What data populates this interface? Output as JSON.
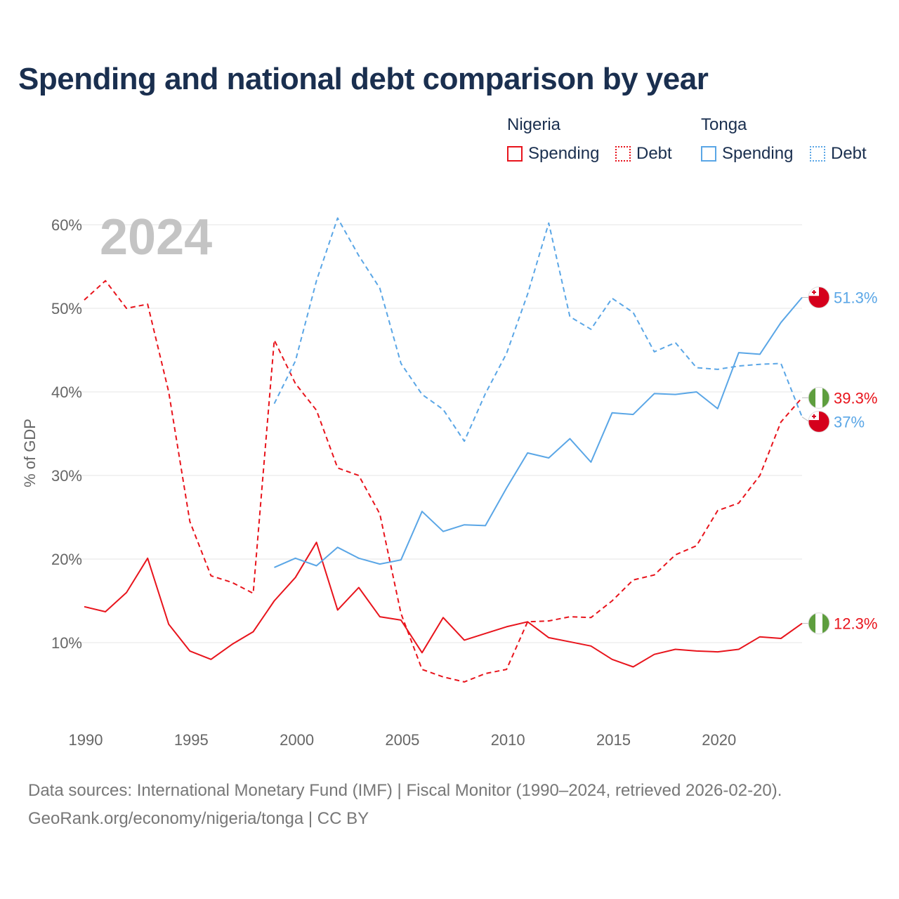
{
  "chart_data": {
    "type": "line",
    "title": "Spending and national debt comparison by year",
    "year_overlay": "2024",
    "ylabel": "% of GDP",
    "xlabel": "",
    "xlim": [
      1990,
      2024
    ],
    "ylim": [
      2,
      62
    ],
    "x_ticks": [
      1990,
      1995,
      2000,
      2005,
      2010,
      2015,
      2020
    ],
    "y_ticks": [
      10,
      20,
      30,
      40,
      50,
      60
    ],
    "y_tick_labels": [
      "10%",
      "20%",
      "30%",
      "40%",
      "50%",
      "60%"
    ],
    "legend": {
      "groups": [
        {
          "name": "Nigeria",
          "items": [
            {
              "label": "Spending",
              "style": "solid",
              "color": "#e8141c"
            },
            {
              "label": "Debt",
              "style": "dotted",
              "color": "#e8141c"
            }
          ]
        },
        {
          "name": "Tonga",
          "items": [
            {
              "label": "Spending",
              "style": "solid",
              "color": "#5aa6e6"
            },
            {
              "label": "Debt",
              "style": "dotted",
              "color": "#5aa6e6"
            }
          ]
        }
      ]
    },
    "series": [
      {
        "name": "Nigeria Spending",
        "country": "Nigeria",
        "metric": "Spending",
        "color": "#e8141c",
        "dashed": false,
        "x": [
          1990,
          1991,
          1992,
          1993,
          1994,
          1995,
          1996,
          1997,
          1998,
          1999,
          2000,
          2001,
          2002,
          2003,
          2004,
          2005,
          2006,
          2007,
          2008,
          2009,
          2010,
          2011,
          2012,
          2013,
          2014,
          2015,
          2016,
          2017,
          2018,
          2019,
          2020,
          2021,
          2022,
          2023,
          2024
        ],
        "values": [
          14.3,
          13.7,
          16.0,
          20.1,
          12.2,
          9.0,
          8.0,
          9.8,
          11.3,
          15.0,
          17.8,
          22.0,
          13.9,
          16.6,
          13.1,
          12.7,
          8.8,
          13.0,
          10.3,
          11.1,
          11.9,
          12.5,
          10.6,
          10.1,
          9.6,
          8.0,
          7.1,
          8.6,
          9.2,
          9.0,
          8.9,
          9.2,
          10.7,
          10.5,
          12.3
        ],
        "end_label": "12.3%"
      },
      {
        "name": "Nigeria Debt",
        "country": "Nigeria",
        "metric": "Debt",
        "color": "#e8141c",
        "dashed": true,
        "x": [
          1990,
          1991,
          1992,
          1993,
          1994,
          1995,
          1996,
          1997,
          1998,
          1999,
          2000,
          2001,
          2002,
          2003,
          2004,
          2005,
          2006,
          2007,
          2008,
          2009,
          2010,
          2011,
          2012,
          2013,
          2014,
          2015,
          2016,
          2017,
          2018,
          2019,
          2020,
          2021,
          2022,
          2023,
          2024
        ],
        "values": [
          51.0,
          53.3,
          50.0,
          50.5,
          40.0,
          24.5,
          18.0,
          17.2,
          15.9,
          46.2,
          41.0,
          37.8,
          30.9,
          30.0,
          25.4,
          13.5,
          6.8,
          5.9,
          5.3,
          6.3,
          6.8,
          12.5,
          12.6,
          13.1,
          13.0,
          15.0,
          17.5,
          18.1,
          20.5,
          21.6,
          25.8,
          26.7,
          30.0,
          36.4,
          39.3
        ],
        "end_label": "39.3%"
      },
      {
        "name": "Tonga Spending",
        "country": "Tonga",
        "metric": "Spending",
        "color": "#5aa6e6",
        "dashed": false,
        "x": [
          1999,
          2000,
          2001,
          2002,
          2003,
          2004,
          2005,
          2006,
          2007,
          2008,
          2009,
          2010,
          2011,
          2012,
          2013,
          2014,
          2015,
          2016,
          2017,
          2018,
          2019,
          2020,
          2021,
          2022,
          2023,
          2024
        ],
        "values": [
          19.0,
          20.1,
          19.2,
          21.4,
          20.1,
          19.4,
          19.9,
          25.7,
          23.3,
          24.1,
          24.0,
          28.5,
          32.7,
          32.1,
          34.4,
          31.6,
          37.5,
          37.3,
          39.8,
          39.7,
          40.0,
          38.0,
          44.7,
          44.5,
          48.3,
          51.3
        ],
        "end_label": "51.3%"
      },
      {
        "name": "Tonga Debt",
        "country": "Tonga",
        "metric": "Debt",
        "color": "#5aa6e6",
        "dashed": true,
        "x": [
          1999,
          2000,
          2001,
          2002,
          2003,
          2004,
          2005,
          2006,
          2007,
          2008,
          2009,
          2010,
          2011,
          2012,
          2013,
          2014,
          2015,
          2016,
          2017,
          2018,
          2019,
          2020,
          2021,
          2022,
          2023,
          2024
        ],
        "values": [
          38.6,
          43.7,
          53.3,
          60.8,
          56.3,
          52.4,
          43.4,
          39.7,
          37.9,
          34.1,
          39.8,
          44.6,
          51.7,
          60.2,
          49.0,
          47.5,
          51.2,
          49.5,
          44.8,
          45.9,
          42.9,
          42.7,
          43.1,
          43.3,
          43.4,
          37.0
        ],
        "end_label": "37%"
      }
    ],
    "markers": [
      {
        "series": "Tonga Spending",
        "flag": "tonga-flag"
      },
      {
        "series": "Nigeria Debt",
        "flag": "nigeria-flag"
      },
      {
        "series": "Tonga Debt",
        "flag": "tonga-flag"
      },
      {
        "series": "Nigeria Spending",
        "flag": "nigeria-flag"
      }
    ]
  },
  "footer": {
    "line1": "Data sources: International Monetary Fund (IMF) | Fiscal Monitor (1990–2024, retrieved 2026-02-20).",
    "line2": "GeoRank.org/economy/nigeria/tonga | CC BY"
  }
}
